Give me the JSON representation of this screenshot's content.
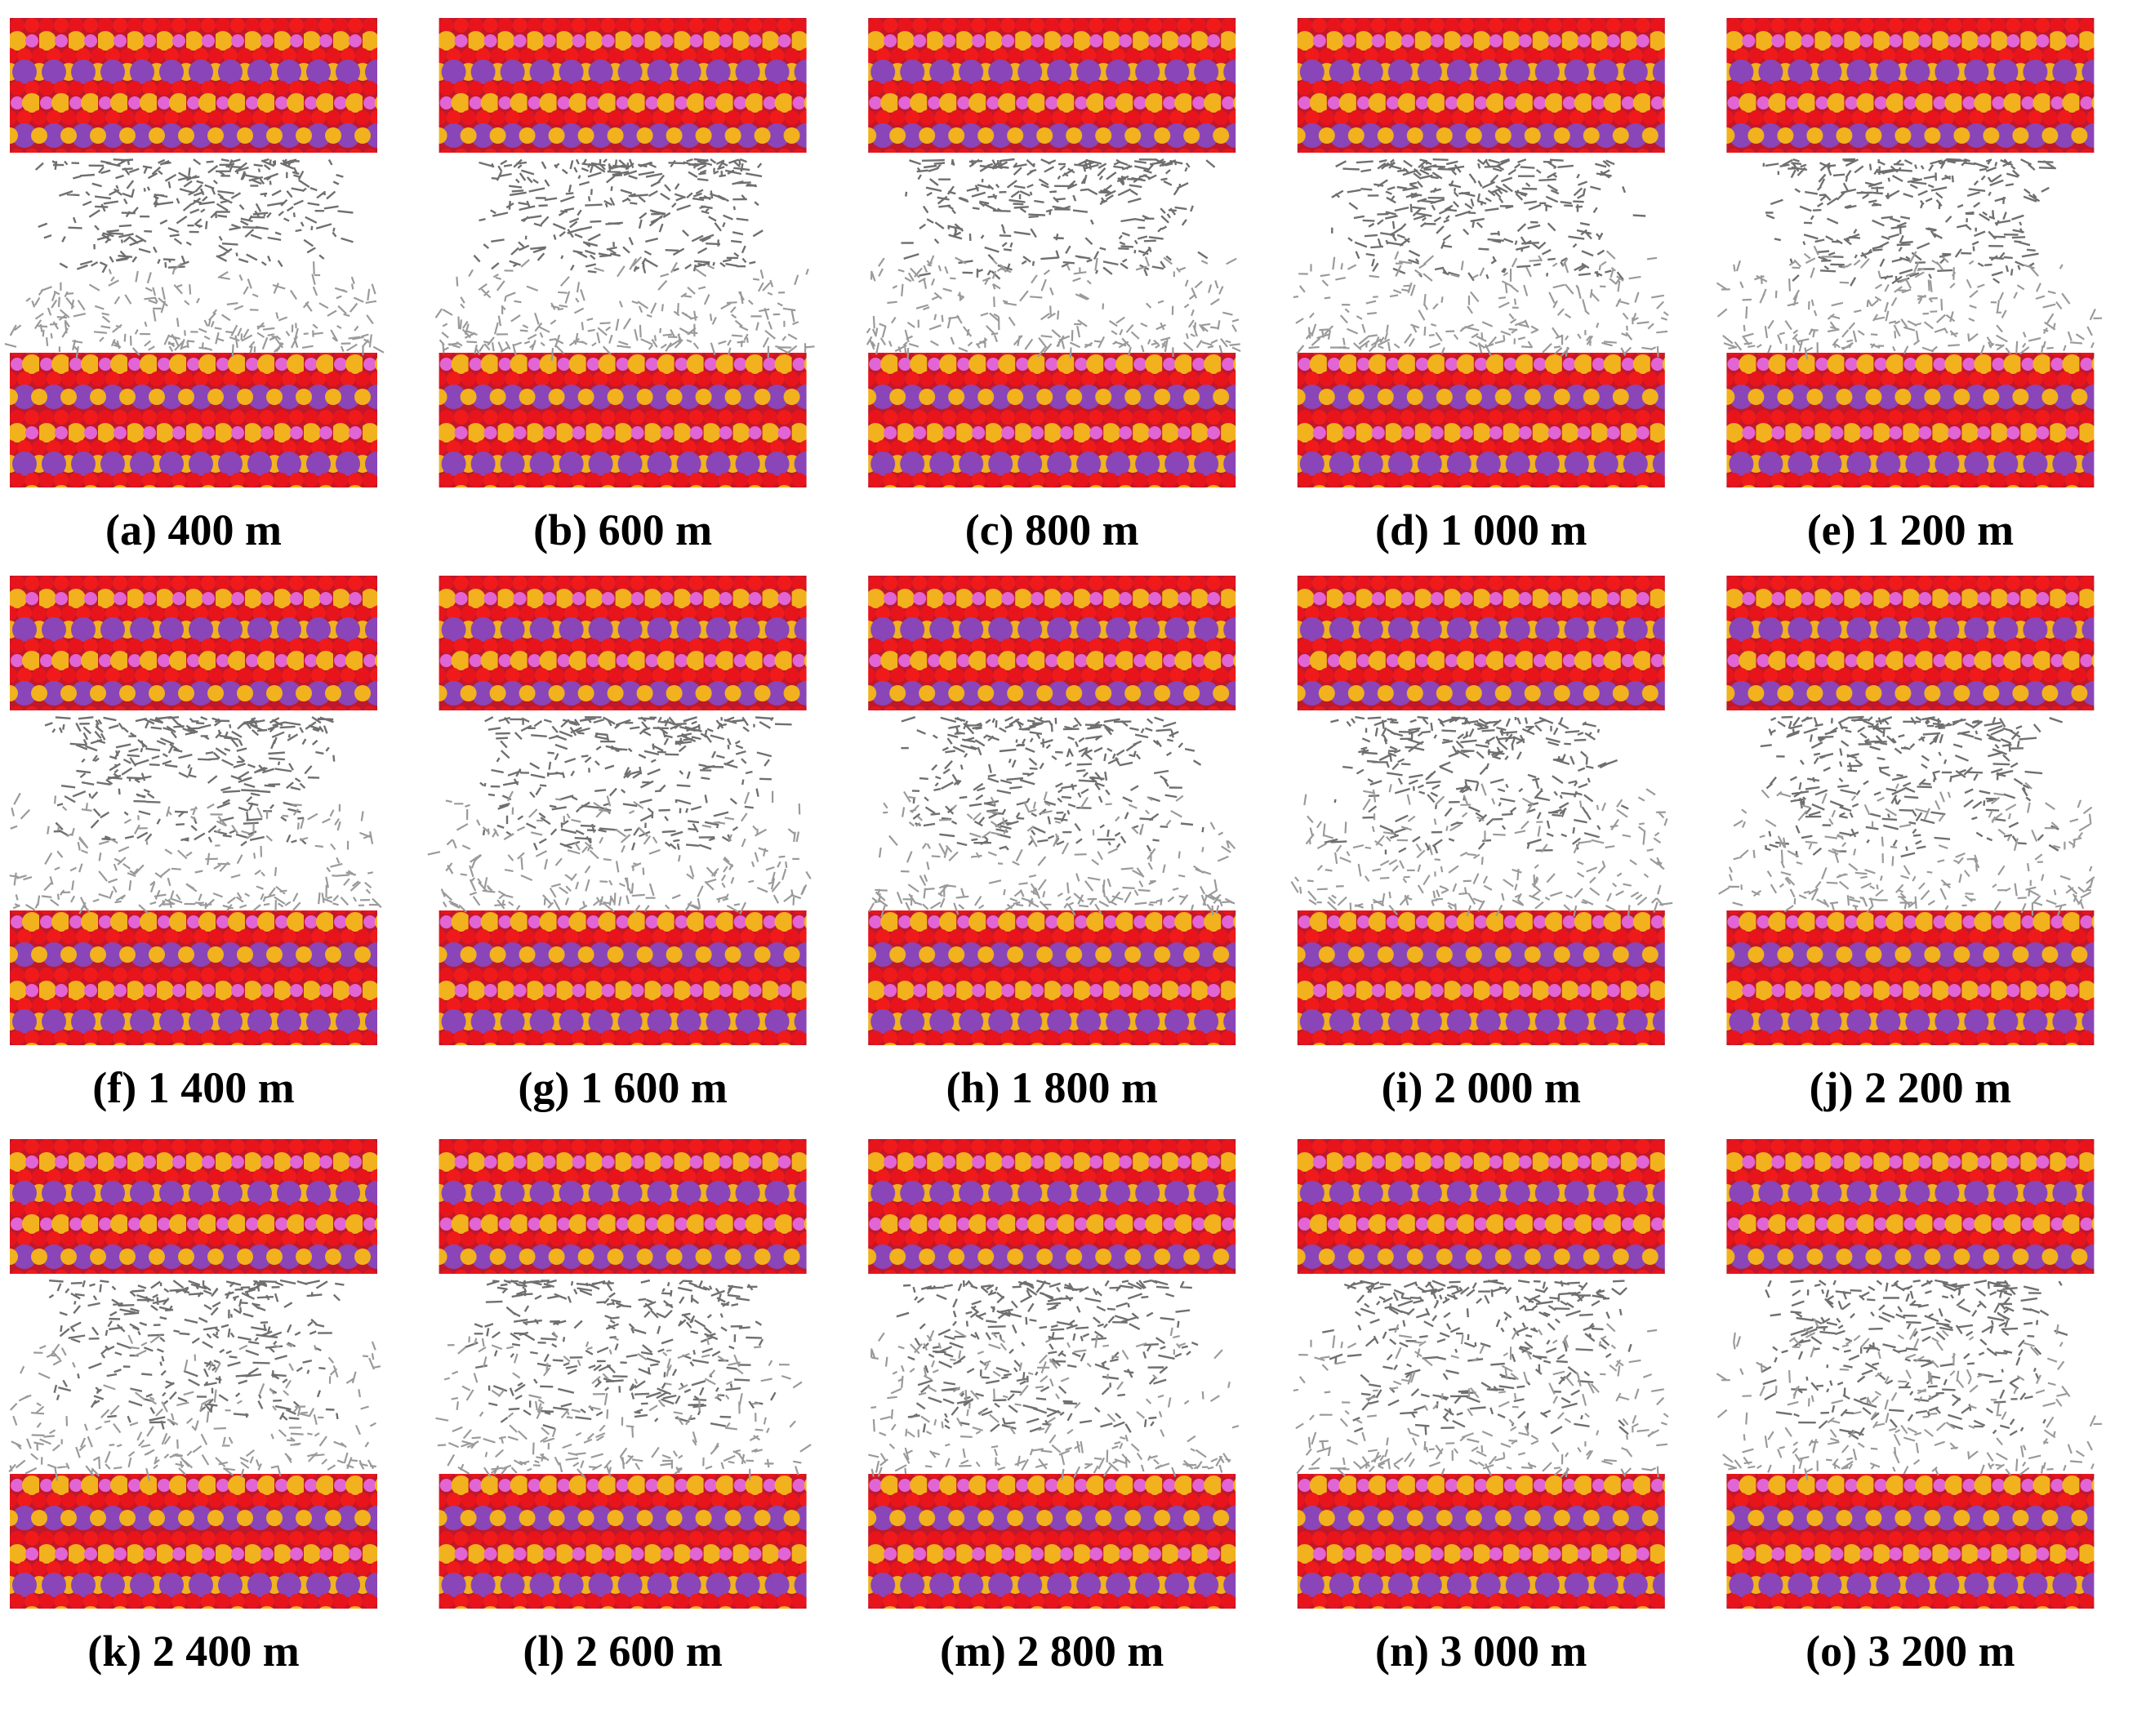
{
  "panels": [
    {
      "label": "(a) 400 m"
    },
    {
      "label": "(b) 600 m"
    },
    {
      "label": "(c) 800 m"
    },
    {
      "label": "(d) 1 000 m"
    },
    {
      "label": "(e) 1 200 m"
    },
    {
      "label": "(f) 1 400 m"
    },
    {
      "label": "(g) 1 600 m"
    },
    {
      "label": "(h) 1 800 m"
    },
    {
      "label": "(i) 2 000 m"
    },
    {
      "label": "(j) 2 200 m"
    },
    {
      "label": "(k) 2 400 m"
    },
    {
      "label": "(l) 2 600 m"
    },
    {
      "label": "(m) 2 800 m"
    },
    {
      "label": "(n) 3 000 m"
    },
    {
      "label": "(o) 3 200 m"
    }
  ]
}
